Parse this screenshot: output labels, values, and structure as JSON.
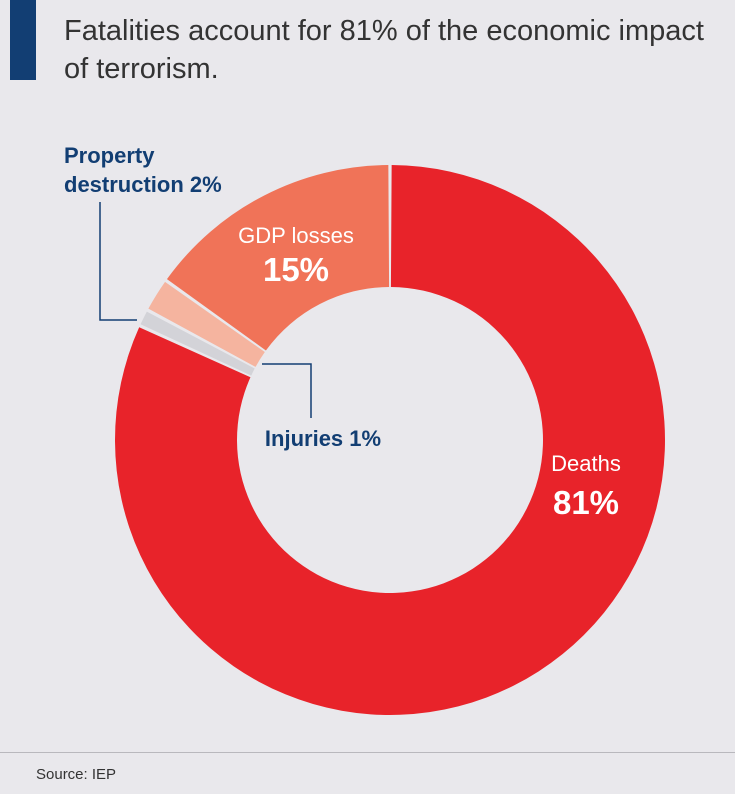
{
  "title": "Fatalities account for 81% of the economic impact of terrorism.",
  "source": "Source: IEP",
  "colors": {
    "accent": "#123e73",
    "deaths": "#e8232a",
    "gdp_losses": "#f07358",
    "property_destruction": "#f5b49f",
    "injuries": "#d3d3d8",
    "label_dark": "#123e73",
    "label_light": "#ffffff"
  },
  "chart_data": {
    "type": "pie",
    "variant": "donut",
    "series": [
      {
        "name": "Deaths",
        "value": 81,
        "label_value": "81%",
        "color": "#e8232a"
      },
      {
        "name": "Injuries",
        "value": 1,
        "label": "Injuries 1%",
        "color": "#d3d3d8"
      },
      {
        "name": "Property destruction",
        "value": 2,
        "label_lines": [
          "Property",
          "destruction 2%"
        ],
        "color": "#f5b49f"
      },
      {
        "name": "GDP losses",
        "value": 15,
        "label_value": "15%",
        "color": "#f07358"
      }
    ],
    "unit": "%"
  }
}
